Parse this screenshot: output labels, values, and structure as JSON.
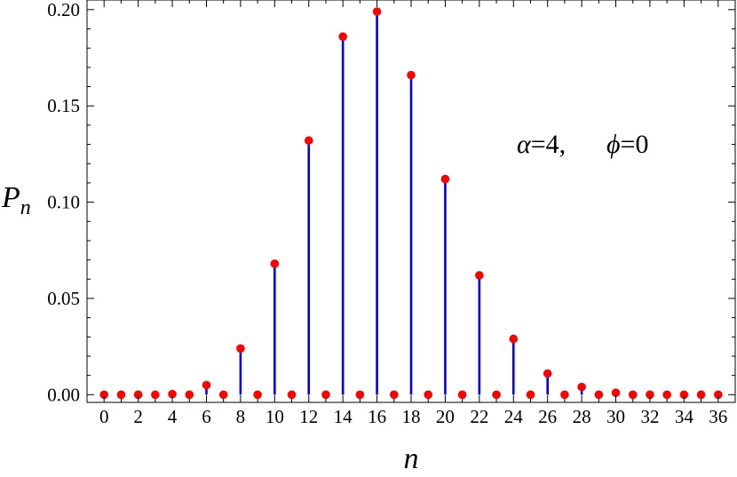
{
  "chart_data": {
    "type": "scatter",
    "style": "stem",
    "xlabel": "n",
    "ylabel": {
      "main": "P",
      "sub": "n"
    },
    "annotation": {
      "alpha_symbol": "α",
      "alpha_value": "=4,",
      "phi_symbol": "ϕ",
      "phi_value": "=0"
    },
    "xlim": [
      -1,
      37
    ],
    "ylim": [
      -0.004,
      0.205
    ],
    "x_ticks": [
      0,
      2,
      4,
      6,
      8,
      10,
      12,
      14,
      16,
      18,
      20,
      22,
      24,
      26,
      28,
      30,
      32,
      34,
      36
    ],
    "y_ticks": [
      0.0,
      0.05,
      0.1,
      0.15,
      0.2
    ],
    "y_tick_labels": [
      "0.00",
      "0.05",
      "0.10",
      "0.15",
      "0.20"
    ],
    "grid": false,
    "colors": {
      "stem": "#0000e6",
      "marker": "#ff0000",
      "axis": "#000000"
    },
    "series": [
      {
        "x": [
          0,
          1,
          2,
          3,
          4,
          5,
          6,
          7,
          8,
          9,
          10,
          11,
          12,
          13,
          14,
          15,
          16,
          17,
          18,
          19,
          20,
          21,
          22,
          23,
          24,
          25,
          26,
          27,
          28,
          29,
          30,
          31,
          32,
          33,
          34,
          35,
          36
        ],
        "y": [
          0,
          0,
          0,
          0,
          0.0003,
          0,
          0.005,
          0,
          0.024,
          0,
          0.068,
          0,
          0.132,
          0,
          0.186,
          0,
          0.199,
          0,
          0.166,
          0,
          0.112,
          0,
          0.062,
          0,
          0.029,
          0,
          0.011,
          0,
          0.004,
          0,
          0.001,
          0,
          0,
          0,
          0,
          0,
          0
        ]
      }
    ]
  }
}
